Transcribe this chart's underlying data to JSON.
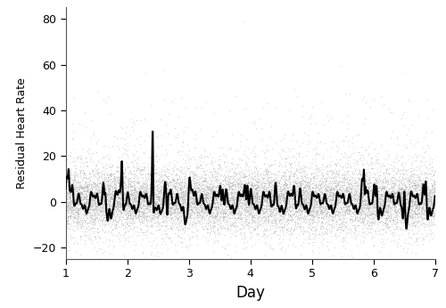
{
  "xlabel": "Day",
  "ylabel": "Residual Heart Rate",
  "xlim": [
    1,
    7
  ],
  "ylim": [
    -25,
    85
  ],
  "yticks": [
    -20,
    0,
    20,
    40,
    60,
    80
  ],
  "xticks": [
    1,
    2,
    3,
    4,
    5,
    6,
    7
  ],
  "dot_color": "#b0b0b0",
  "dot_alpha": 0.5,
  "dot_size": 0.8,
  "line_color": "#000000",
  "line_width": 1.5,
  "random_seed": 42,
  "xlabel_fontsize": 12,
  "ylabel_fontsize": 9,
  "tick_fontsize": 9,
  "figsize": [
    5.0,
    3.46
  ],
  "dpi": 100
}
